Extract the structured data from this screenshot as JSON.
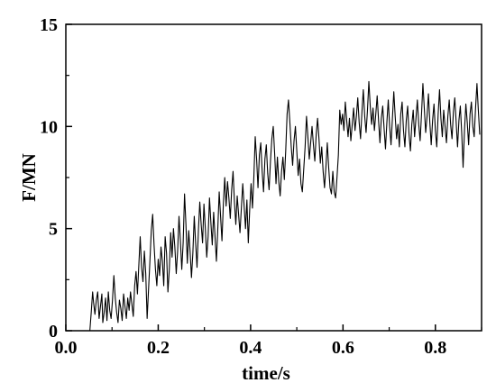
{
  "chart_data": {
    "type": "line",
    "xlabel": "time/s",
    "ylabel": "F/MN",
    "xlim": [
      0.0,
      0.9
    ],
    "ylim": [
      0,
      15
    ],
    "x_ticks": [
      "0.0",
      "0.2",
      "0.4",
      "0.6",
      "0.8"
    ],
    "y_ticks": [
      "0",
      "5",
      "10",
      "15"
    ],
    "grid": false,
    "legend": "none",
    "line_color": "#000000",
    "series": [
      {
        "x": [
          0.052,
          0.055,
          0.058,
          0.06,
          0.063,
          0.066,
          0.069,
          0.072,
          0.075,
          0.078,
          0.08,
          0.083,
          0.086,
          0.089,
          0.092,
          0.095,
          0.098,
          0.101,
          0.104,
          0.107,
          0.11,
          0.113,
          0.116,
          0.119,
          0.122,
          0.125,
          0.128,
          0.131,
          0.134,
          0.137,
          0.14,
          0.143,
          0.146,
          0.149,
          0.152,
          0.155,
          0.158,
          0.161,
          0.164,
          0.167,
          0.17,
          0.173,
          0.176,
          0.179,
          0.182,
          0.185,
          0.188,
          0.191,
          0.194,
          0.197,
          0.2,
          0.203,
          0.206,
          0.209,
          0.212,
          0.215,
          0.218,
          0.221,
          0.224,
          0.227,
          0.23,
          0.233,
          0.236,
          0.239,
          0.242,
          0.245,
          0.248,
          0.251,
          0.254,
          0.257,
          0.26,
          0.263,
          0.266,
          0.269,
          0.272,
          0.275,
          0.278,
          0.281,
          0.284,
          0.287,
          0.29,
          0.293,
          0.296,
          0.299,
          0.302,
          0.305,
          0.308,
          0.311,
          0.314,
          0.317,
          0.32,
          0.323,
          0.326,
          0.329,
          0.332,
          0.335,
          0.338,
          0.341,
          0.344,
          0.347,
          0.35,
          0.353,
          0.356,
          0.359,
          0.362,
          0.365,
          0.368,
          0.371,
          0.374,
          0.377,
          0.38,
          0.383,
          0.386,
          0.389,
          0.392,
          0.395,
          0.398,
          0.401,
          0.404,
          0.407,
          0.41,
          0.413,
          0.416,
          0.419,
          0.422,
          0.425,
          0.428,
          0.431,
          0.434,
          0.437,
          0.44,
          0.443,
          0.446,
          0.449,
          0.452,
          0.455,
          0.458,
          0.461,
          0.464,
          0.467,
          0.47,
          0.473,
          0.476,
          0.479,
          0.482,
          0.485,
          0.488,
          0.491,
          0.494,
          0.497,
          0.5,
          0.503,
          0.506,
          0.509,
          0.512,
          0.515,
          0.518,
          0.521,
          0.524,
          0.527,
          0.53,
          0.533,
          0.536,
          0.539,
          0.542,
          0.545,
          0.548,
          0.551,
          0.554,
          0.557,
          0.56,
          0.563,
          0.566,
          0.569,
          0.572,
          0.575,
          0.578,
          0.581,
          0.584,
          0.587,
          0.59,
          0.593,
          0.596,
          0.599,
          0.602,
          0.605,
          0.608,
          0.611,
          0.614,
          0.617,
          0.62,
          0.623,
          0.626,
          0.629,
          0.632,
          0.635,
          0.638,
          0.641,
          0.644,
          0.647,
          0.65,
          0.653,
          0.656,
          0.659,
          0.662,
          0.665,
          0.668,
          0.671,
          0.674,
          0.677,
          0.68,
          0.683,
          0.686,
          0.689,
          0.692,
          0.695,
          0.698,
          0.701,
          0.704,
          0.707,
          0.71,
          0.713,
          0.716,
          0.719,
          0.722,
          0.725,
          0.728,
          0.731,
          0.734,
          0.737,
          0.74,
          0.743,
          0.746,
          0.749,
          0.752,
          0.755,
          0.758,
          0.761,
          0.764,
          0.767,
          0.77,
          0.773,
          0.776,
          0.779,
          0.782,
          0.785,
          0.788,
          0.791,
          0.794,
          0.797,
          0.8,
          0.803,
          0.806,
          0.809,
          0.812,
          0.815,
          0.818,
          0.821,
          0.824,
          0.827,
          0.83,
          0.833,
          0.836,
          0.839,
          0.842,
          0.845,
          0.848,
          0.851,
          0.854,
          0.857,
          0.86,
          0.863,
          0.866,
          0.869,
          0.872,
          0.875,
          0.878,
          0.881,
          0.884,
          0.887,
          0.89,
          0.893,
          0.896
        ],
        "values": [
          0.0,
          0.9,
          1.9,
          1.4,
          0.8,
          1.5,
          1.9,
          0.6,
          1.2,
          1.8,
          0.4,
          0.9,
          1.6,
          0.5,
          1.9,
          1.0,
          0.6,
          1.5,
          2.7,
          1.6,
          0.9,
          0.4,
          1.5,
          1.1,
          0.5,
          1.8,
          1.2,
          0.6,
          1.6,
          1.0,
          1.9,
          1.3,
          0.7,
          2.2,
          2.9,
          1.8,
          3.2,
          4.6,
          3.1,
          2.4,
          3.9,
          2.8,
          0.6,
          2.0,
          3.4,
          4.9,
          5.7,
          4.2,
          3.0,
          2.2,
          3.5,
          2.7,
          4.1,
          3.4,
          2.2,
          4.6,
          3.8,
          1.9,
          3.0,
          4.8,
          3.6,
          5.0,
          4.1,
          2.8,
          3.9,
          5.6,
          4.4,
          3.0,
          4.3,
          6.7,
          5.2,
          3.3,
          4.9,
          3.9,
          2.6,
          3.8,
          5.6,
          4.3,
          3.1,
          4.9,
          6.3,
          5.2,
          4.3,
          6.2,
          5.0,
          3.6,
          4.6,
          6.5,
          5.3,
          4.2,
          5.8,
          4.6,
          3.4,
          5.0,
          6.8,
          5.6,
          4.4,
          6.2,
          7.5,
          6.1,
          7.3,
          6.5,
          5.5,
          6.9,
          7.8,
          6.3,
          5.2,
          6.6,
          5.7,
          4.8,
          6.0,
          7.2,
          6.1,
          5.0,
          6.4,
          4.3,
          5.9,
          7.2,
          6.0,
          7.5,
          9.5,
          8.4,
          7.0,
          8.6,
          9.2,
          7.8,
          6.8,
          8.4,
          9.1,
          7.7,
          6.9,
          8.3,
          9.4,
          10.0,
          8.7,
          7.2,
          8.5,
          7.3,
          6.6,
          7.8,
          8.5,
          7.4,
          8.8,
          10.6,
          11.3,
          10.2,
          9.0,
          8.1,
          9.3,
          10.0,
          8.8,
          7.6,
          8.4,
          7.2,
          6.8,
          7.9,
          9.0,
          10.5,
          9.5,
          8.4,
          9.2,
          10.0,
          9.1,
          8.3,
          9.6,
          10.4,
          9.4,
          8.2,
          9.0,
          7.8,
          7.0,
          8.0,
          9.2,
          8.0,
          7.0,
          6.7,
          7.8,
          6.8,
          6.5,
          7.5,
          8.6,
          10.8,
          10.1,
          10.6,
          9.8,
          11.2,
          10.3,
          9.5,
          10.4,
          9.3,
          10.1,
          10.9,
          9.8,
          10.5,
          11.4,
          10.2,
          9.4,
          10.7,
          11.8,
          10.5,
          9.7,
          10.8,
          12.2,
          11.0,
          10.1,
          10.9,
          9.8,
          10.6,
          11.5,
          10.3,
          9.2,
          10.4,
          11.0,
          9.9,
          8.9,
          10.2,
          11.3,
          10.0,
          9.1,
          10.4,
          11.7,
          10.5,
          9.4,
          10.1,
          9.0,
          10.6,
          11.2,
          9.8,
          9.0,
          10.3,
          11.0,
          9.6,
          8.8,
          10.1,
          10.8,
          9.5,
          10.4,
          11.3,
          10.1,
          9.3,
          10.6,
          12.1,
          10.9,
          9.7,
          10.5,
          11.6,
          10.2,
          9.1,
          10.3,
          11.1,
          9.8,
          9.0,
          10.6,
          11.8,
          10.4,
          9.5,
          10.8,
          10.0,
          9.2,
          10.5,
          11.3,
          10.1,
          9.4,
          10.7,
          11.4,
          10.2,
          9.0,
          10.3,
          11.0,
          9.7,
          8.0,
          9.8,
          11.1,
          10.2,
          9.1,
          10.6,
          11.2,
          10.0,
          9.5,
          10.9,
          12.1,
          10.8,
          9.6
        ]
      }
    ]
  }
}
